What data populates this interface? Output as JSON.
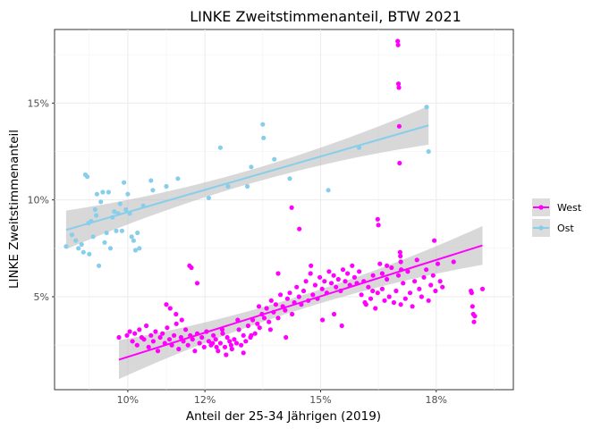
{
  "chart_data": {
    "type": "scatter",
    "title": "LINKE Zweitstimmenanteil, BTW 2021",
    "xlabel": "Anteil der 25-34 Jährigen (2019)",
    "ylabel": "LINKE Zweitstimmenanteil",
    "xlim": [
      0.081,
      0.2
    ],
    "ylim": [
      0.002,
      0.188
    ],
    "x_ticks": [
      0.1,
      0.12,
      0.15,
      0.18
    ],
    "x_tick_labels": [
      "10%",
      "12%",
      "15%",
      "18%"
    ],
    "y_ticks": [
      0.05,
      0.1,
      0.15
    ],
    "y_tick_labels": [
      "5%",
      "10%",
      "15%"
    ],
    "grid": true,
    "legend_position": "right",
    "series": [
      {
        "name": "West",
        "color": "#ff00ff",
        "points": [
          [
            0.0977,
            0.029
          ],
          [
            0.0998,
            0.03
          ],
          [
            0.1005,
            0.032
          ],
          [
            0.1012,
            0.027
          ],
          [
            0.1018,
            0.031
          ],
          [
            0.1024,
            0.025
          ],
          [
            0.103,
            0.033
          ],
          [
            0.1036,
            0.029
          ],
          [
            0.1042,
            0.028
          ],
          [
            0.1048,
            0.035
          ],
          [
            0.1054,
            0.024
          ],
          [
            0.106,
            0.03
          ],
          [
            0.1066,
            0.027
          ],
          [
            0.1072,
            0.032
          ],
          [
            0.1078,
            0.022
          ],
          [
            0.1084,
            0.029
          ],
          [
            0.109,
            0.031
          ],
          [
            0.1096,
            0.026
          ],
          [
            0.1102,
            0.034
          ],
          [
            0.1108,
            0.028
          ],
          [
            0.1114,
            0.025
          ],
          [
            0.112,
            0.03
          ],
          [
            0.1126,
            0.036
          ],
          [
            0.1132,
            0.023
          ],
          [
            0.1138,
            0.029
          ],
          [
            0.1144,
            0.027
          ],
          [
            0.115,
            0.033
          ],
          [
            0.1156,
            0.025
          ],
          [
            0.1162,
            0.03
          ],
          [
            0.1168,
            0.028
          ],
          [
            0.1174,
            0.022
          ],
          [
            0.118,
            0.031
          ],
          [
            0.1186,
            0.026
          ],
          [
            0.1192,
            0.029
          ],
          [
            0.1198,
            0.024
          ],
          [
            0.1204,
            0.032
          ],
          [
            0.121,
            0.027
          ],
          [
            0.1216,
            0.025
          ],
          [
            0.1222,
            0.03
          ],
          [
            0.1228,
            0.028
          ],
          [
            0.1234,
            0.022
          ],
          [
            0.124,
            0.026
          ],
          [
            0.1246,
            0.031
          ],
          [
            0.1252,
            0.024
          ],
          [
            0.1258,
            0.029
          ],
          [
            0.1264,
            0.027
          ],
          [
            0.127,
            0.023
          ],
          [
            0.1276,
            0.028
          ],
          [
            0.1282,
            0.026
          ],
          [
            0.1288,
            0.033
          ],
          [
            0.1294,
            0.025
          ],
          [
            0.13,
            0.03
          ],
          [
            0.1306,
            0.027
          ],
          [
            0.1312,
            0.035
          ],
          [
            0.1318,
            0.029
          ],
          [
            0.1324,
            0.038
          ],
          [
            0.133,
            0.031
          ],
          [
            0.1336,
            0.036
          ],
          [
            0.1342,
            0.034
          ],
          [
            0.1348,
            0.041
          ],
          [
            0.1354,
            0.039
          ],
          [
            0.136,
            0.044
          ],
          [
            0.1366,
            0.037
          ],
          [
            0.1372,
            0.048
          ],
          [
            0.1378,
            0.042
          ],
          [
            0.1384,
            0.046
          ],
          [
            0.139,
            0.039
          ],
          [
            0.1396,
            0.051
          ],
          [
            0.1402,
            0.045
          ],
          [
            0.1408,
            0.043
          ],
          [
            0.1414,
            0.049
          ],
          [
            0.142,
            0.052
          ],
          [
            0.1426,
            0.041
          ],
          [
            0.1432,
            0.047
          ],
          [
            0.1438,
            0.055
          ],
          [
            0.1444,
            0.05
          ],
          [
            0.145,
            0.046
          ],
          [
            0.1456,
            0.053
          ],
          [
            0.1462,
            0.058
          ],
          [
            0.1468,
            0.048
          ],
          [
            0.1474,
            0.062
          ],
          [
            0.148,
            0.051
          ],
          [
            0.1486,
            0.056
          ],
          [
            0.1492,
            0.049
          ],
          [
            0.1498,
            0.06
          ],
          [
            0.1504,
            0.054
          ],
          [
            0.151,
            0.058
          ],
          [
            0.1516,
            0.052
          ],
          [
            0.1522,
            0.063
          ],
          [
            0.1528,
            0.057
          ],
          [
            0.1534,
            0.061
          ],
          [
            0.154,
            0.055
          ],
          [
            0.1546,
            0.059
          ],
          [
            0.1552,
            0.053
          ],
          [
            0.1558,
            0.064
          ],
          [
            0.1564,
            0.058
          ],
          [
            0.157,
            0.062
          ],
          [
            0.1576,
            0.056
          ],
          [
            0.1582,
            0.066
          ],
          [
            0.1588,
            0.06
          ],
          [
            0.1594,
            0.057
          ],
          [
            0.16,
            0.063
          ],
          [
            0.1606,
            0.051
          ],
          [
            0.1612,
            0.058
          ],
          [
            0.1618,
            0.046
          ],
          [
            0.1624,
            0.055
          ],
          [
            0.163,
            0.049
          ],
          [
            0.1636,
            0.061
          ],
          [
            0.1642,
            0.044
          ],
          [
            0.1648,
            0.052
          ],
          [
            0.1654,
            0.067
          ],
          [
            0.166,
            0.054
          ],
          [
            0.1666,
            0.048
          ],
          [
            0.1672,
            0.059
          ],
          [
            0.1678,
            0.05
          ],
          [
            0.1684,
            0.065
          ],
          [
            0.169,
            0.047
          ],
          [
            0.1696,
            0.053
          ],
          [
            0.1702,
            0.061
          ],
          [
            0.1708,
            0.046
          ],
          [
            0.1714,
            0.057
          ],
          [
            0.172,
            0.049
          ],
          [
            0.1726,
            0.063
          ],
          [
            0.1732,
            0.052
          ],
          [
            0.1738,
            0.045
          ],
          [
            0.1744,
            0.058
          ],
          [
            0.175,
            0.069
          ],
          [
            0.1756,
            0.054
          ],
          [
            0.1762,
            0.05
          ],
          [
            0.1768,
            0.06
          ],
          [
            0.1774,
            0.064
          ],
          [
            0.178,
            0.048
          ],
          [
            0.1786,
            0.056
          ],
          [
            0.1792,
            0.061
          ],
          [
            0.1798,
            0.053
          ],
          [
            0.1804,
            0.067
          ],
          [
            0.181,
            0.058
          ],
          [
            0.1816,
            0.055
          ],
          [
            0.11,
            0.046
          ],
          [
            0.111,
            0.044
          ],
          [
            0.1125,
            0.041
          ],
          [
            0.114,
            0.038
          ],
          [
            0.116,
            0.066
          ],
          [
            0.1165,
            0.065
          ],
          [
            0.118,
            0.057
          ],
          [
            0.122,
            0.026
          ],
          [
            0.123,
            0.024
          ],
          [
            0.1245,
            0.033
          ],
          [
            0.1255,
            0.02
          ],
          [
            0.1268,
            0.025
          ],
          [
            0.1285,
            0.038
          ],
          [
            0.13,
            0.021
          ],
          [
            0.132,
            0.03
          ],
          [
            0.134,
            0.045
          ],
          [
            0.137,
            0.033
          ],
          [
            0.139,
            0.062
          ],
          [
            0.141,
            0.029
          ],
          [
            0.1425,
            0.096
          ],
          [
            0.1445,
            0.085
          ],
          [
            0.1475,
            0.066
          ],
          [
            0.1505,
            0.038
          ],
          [
            0.1535,
            0.041
          ],
          [
            0.1555,
            0.035
          ],
          [
            0.1615,
            0.047
          ],
          [
            0.1635,
            0.053
          ],
          [
            0.1648,
            0.09
          ],
          [
            0.165,
            0.087
          ],
          [
            0.166,
            0.062
          ],
          [
            0.1672,
            0.066
          ],
          [
            0.17,
            0.182
          ],
          [
            0.1701,
            0.18
          ],
          [
            0.1702,
            0.16
          ],
          [
            0.1703,
            0.158
          ],
          [
            0.1704,
            0.138
          ],
          [
            0.1705,
            0.119
          ],
          [
            0.1706,
            0.073
          ],
          [
            0.1707,
            0.071
          ],
          [
            0.1708,
            0.068
          ],
          [
            0.1709,
            0.064
          ],
          [
            0.1795,
            0.079
          ],
          [
            0.1845,
            0.068
          ],
          [
            0.189,
            0.053
          ],
          [
            0.1892,
            0.052
          ],
          [
            0.1894,
            0.045
          ],
          [
            0.1896,
            0.041
          ],
          [
            0.1898,
            0.037
          ],
          [
            0.19,
            0.04
          ],
          [
            0.192,
            0.054
          ]
        ],
        "trend": {
          "x": [
            0.0977,
            0.192
          ],
          "y": [
            0.0175,
            0.0765
          ]
        }
      },
      {
        "name": "Ost",
        "color": "#87ceeb",
        "points": [
          [
            0.084,
            0.076
          ],
          [
            0.0855,
            0.082
          ],
          [
            0.0865,
            0.079
          ],
          [
            0.0872,
            0.075
          ],
          [
            0.088,
            0.077
          ],
          [
            0.0885,
            0.073
          ],
          [
            0.089,
            0.113
          ],
          [
            0.0895,
            0.112
          ],
          [
            0.0898,
            0.088
          ],
          [
            0.09,
            0.072
          ],
          [
            0.0905,
            0.089
          ],
          [
            0.091,
            0.081
          ],
          [
            0.0915,
            0.095
          ],
          [
            0.0918,
            0.092
          ],
          [
            0.092,
            0.103
          ],
          [
            0.0925,
            0.066
          ],
          [
            0.093,
            0.099
          ],
          [
            0.0935,
            0.104
          ],
          [
            0.094,
            0.078
          ],
          [
            0.0945,
            0.083
          ],
          [
            0.095,
            0.104
          ],
          [
            0.0955,
            0.075
          ],
          [
            0.096,
            0.091
          ],
          [
            0.0965,
            0.094
          ],
          [
            0.097,
            0.084
          ],
          [
            0.0975,
            0.093
          ],
          [
            0.098,
            0.098
          ],
          [
            0.0985,
            0.084
          ],
          [
            0.099,
            0.109
          ],
          [
            0.0995,
            0.095
          ],
          [
            0.1,
            0.103
          ],
          [
            0.1005,
            0.093
          ],
          [
            0.101,
            0.081
          ],
          [
            0.1015,
            0.079
          ],
          [
            0.102,
            0.074
          ],
          [
            0.1025,
            0.083
          ],
          [
            0.103,
            0.075
          ],
          [
            0.104,
            0.097
          ],
          [
            0.106,
            0.11
          ],
          [
            0.1065,
            0.105
          ],
          [
            0.11,
            0.107
          ],
          [
            0.113,
            0.111
          ],
          [
            0.121,
            0.101
          ],
          [
            0.124,
            0.127
          ],
          [
            0.126,
            0.107
          ],
          [
            0.131,
            0.107
          ],
          [
            0.132,
            0.117
          ],
          [
            0.135,
            0.139
          ],
          [
            0.1352,
            0.132
          ],
          [
            0.138,
            0.121
          ],
          [
            0.142,
            0.111
          ],
          [
            0.152,
            0.105
          ],
          [
            0.16,
            0.127
          ],
          [
            0.1775,
            0.148
          ],
          [
            0.178,
            0.125
          ]
        ],
        "trend": {
          "x": [
            0.084,
            0.178
          ],
          "y": [
            0.0845,
            0.1385
          ]
        }
      }
    ]
  }
}
